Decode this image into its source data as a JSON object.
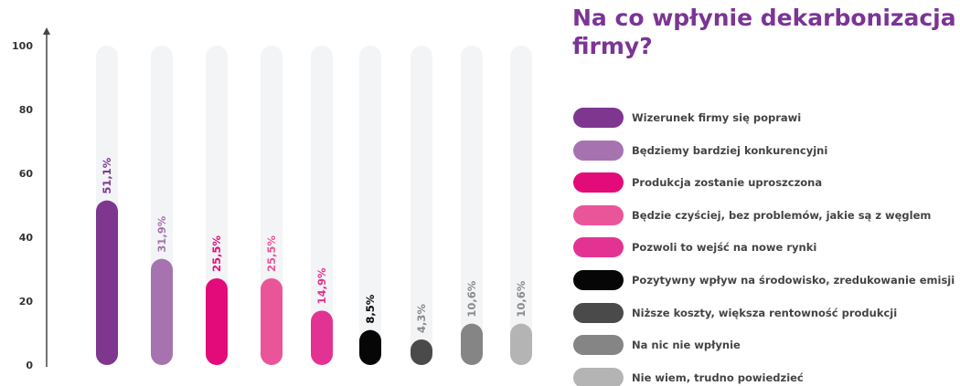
{
  "title": "Na co wpłynie dekarbonizacja firmy?",
  "chart_data": {
    "type": "bar",
    "title": "Na co wpłynie dekarbonizacja firmy?",
    "ylim": [
      0,
      100
    ],
    "yticks": [
      0,
      20,
      40,
      60,
      80,
      100
    ],
    "grid": false,
    "legend_placement": "right",
    "categories": [
      "Wizerunek firmy się poprawi",
      "Będziemy bardziej konkurencyjni",
      "Produkcja zostanie uproszczona",
      "Będzie czyściej, bez problemów, jakie są z węglem",
      "Pozwoli to wejść na nowe rynki",
      "Pozytywny wpływ na środowisko, zredukowanie emisji",
      "Niższe koszty, większa rentowność produkcji",
      "Na nic nie wpłynie",
      "Nie wiem, trudno powiedzieć"
    ],
    "values": [
      51.1,
      31.9,
      25.5,
      25.5,
      14.9,
      8.5,
      4.3,
      10.6,
      10.6
    ],
    "labels": [
      "51,1%",
      "31,9%",
      "25,5%",
      "25,5%",
      "14,9%",
      "8,5%",
      "4,3%",
      "10,6%",
      "10,6%"
    ],
    "colors": [
      "#7e368f",
      "#a673b0",
      "#e30b7a",
      "#ea5599",
      "#e23393",
      "#060606",
      "#4a4a4a",
      "#858585",
      "#b4b4b4"
    ],
    "label_colors": [
      "#7e368f",
      "#a673b0",
      "#e30b7a",
      "#ea5599",
      "#e23393",
      "#060606",
      "#8a8a8a",
      "#8a8a8a",
      "#8a8a8a"
    ],
    "track_color": "#f3f4f6"
  }
}
